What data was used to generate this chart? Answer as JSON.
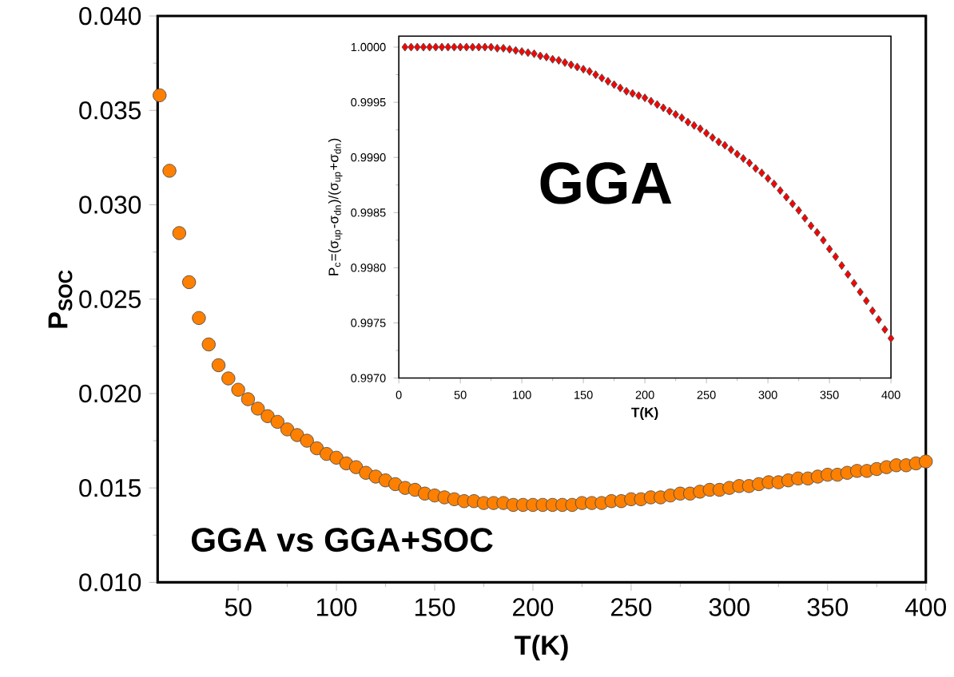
{
  "chart_data": [
    {
      "type": "scatter",
      "xlabel": "T(K)",
      "ylabel": "P$_{SOC}$",
      "color": "#ff8000",
      "marker": "circle",
      "x": [
        10,
        15,
        20,
        25,
        30,
        35,
        40,
        45,
        50,
        55,
        60,
        65,
        70,
        75,
        80,
        85,
        90,
        95,
        100,
        105,
        110,
        115,
        120,
        125,
        130,
        135,
        140,
        145,
        150,
        155,
        160,
        165,
        170,
        175,
        180,
        185,
        190,
        195,
        200,
        205,
        210,
        215,
        220,
        225,
        230,
        235,
        240,
        245,
        250,
        255,
        260,
        265,
        270,
        275,
        280,
        285,
        290,
        295,
        300,
        305,
        310,
        315,
        320,
        325,
        330,
        335,
        340,
        345,
        350,
        355,
        360,
        365,
        370,
        375,
        380,
        385,
        390,
        395,
        400
      ],
      "values": [
        0.0358,
        0.0318,
        0.0285,
        0.0259,
        0.024,
        0.0226,
        0.0215,
        0.0208,
        0.0202,
        0.0197,
        0.0192,
        0.0188,
        0.0185,
        0.0181,
        0.0178,
        0.0175,
        0.0171,
        0.0168,
        0.0166,
        0.0163,
        0.0161,
        0.0158,
        0.0156,
        0.0154,
        0.0152,
        0.015,
        0.0149,
        0.0147,
        0.0146,
        0.0145,
        0.0144,
        0.0143,
        0.0143,
        0.0142,
        0.0142,
        0.0142,
        0.0141,
        0.0141,
        0.0141,
        0.0141,
        0.0141,
        0.0141,
        0.0141,
        0.0142,
        0.0142,
        0.0142,
        0.0143,
        0.0143,
        0.0144,
        0.0144,
        0.0145,
        0.0145,
        0.0146,
        0.0147,
        0.0147,
        0.0148,
        0.0149,
        0.0149,
        0.015,
        0.0151,
        0.0151,
        0.0152,
        0.0153,
        0.0153,
        0.0154,
        0.0155,
        0.0155,
        0.0156,
        0.0157,
        0.0157,
        0.0158,
        0.0159,
        0.0159,
        0.016,
        0.0161,
        0.0162,
        0.0162,
        0.0163,
        0.0164
      ],
      "xlim": [
        9,
        400
      ],
      "ylim": [
        0.01,
        0.04
      ],
      "xticks": [
        50,
        100,
        150,
        200,
        250,
        300,
        350,
        400
      ],
      "yticks": [
        {
          "value": 0.01,
          "label": "0.010"
        },
        {
          "value": 0.015,
          "label": "0.015"
        },
        {
          "value": 0.02,
          "label": "0.020"
        },
        {
          "value": 0.025,
          "label": "0.025"
        },
        {
          "value": 0.03,
          "label": "0.030"
        },
        {
          "value": 0.035,
          "label": "0.035"
        },
        {
          "value": 0.04,
          "label": "0.040"
        }
      ],
      "annotations": [
        "GGA vs GGA+SOC"
      ]
    },
    {
      "type": "scatter",
      "xlabel": "T(K)",
      "ylabel": "P$_{c}$=(σ$_{up}$-σ$_{dn}$)/(σ$_{up}$+σ$_{dn}$)",
      "color": "#ff0000",
      "marker": "diamond",
      "x": [
        5,
        10,
        15,
        20,
        25,
        30,
        35,
        40,
        45,
        50,
        55,
        60,
        65,
        70,
        75,
        80,
        85,
        90,
        95,
        100,
        105,
        110,
        115,
        120,
        125,
        130,
        135,
        140,
        145,
        150,
        155,
        160,
        165,
        170,
        175,
        180,
        185,
        190,
        195,
        200,
        205,
        210,
        215,
        220,
        225,
        230,
        235,
        240,
        245,
        250,
        255,
        260,
        265,
        270,
        275,
        280,
        285,
        290,
        295,
        300,
        305,
        310,
        315,
        320,
        325,
        330,
        335,
        340,
        345,
        350,
        355,
        360,
        365,
        370,
        375,
        380,
        385,
        390,
        395,
        400
      ],
      "values": [
        1.0,
        1.0,
        1.0,
        1.0,
        1.0,
        1.0,
        1.0,
        1.0,
        1.0,
        1.0,
        1.0,
        1.0,
        1.0,
        1.0,
        1.0,
        0.99999,
        0.99999,
        0.99998,
        0.99997,
        0.99996,
        0.99995,
        0.99994,
        0.99992,
        0.99991,
        0.99989,
        0.99988,
        0.99986,
        0.99984,
        0.99982,
        0.9998,
        0.99978,
        0.99975,
        0.99972,
        0.99969,
        0.99966,
        0.99963,
        0.9996,
        0.99958,
        0.99956,
        0.99954,
        0.99951,
        0.99948,
        0.99945,
        0.99942,
        0.99939,
        0.99936,
        0.99932,
        0.99929,
        0.99926,
        0.99922,
        0.99918,
        0.99914,
        0.99911,
        0.99907,
        0.99903,
        0.99899,
        0.99895,
        0.9989,
        0.99886,
        0.99881,
        0.99876,
        0.9987,
        0.99864,
        0.99858,
        0.99852,
        0.99845,
        0.99838,
        0.99832,
        0.99825,
        0.99817,
        0.9981,
        0.99802,
        0.99794,
        0.99786,
        0.99778,
        0.9977,
        0.99761,
        0.99753,
        0.99744,
        0.99736
      ],
      "xlim": [
        0,
        400
      ],
      "ylim": [
        0.997,
        1.0001
      ],
      "xticks": [
        0,
        50,
        100,
        150,
        200,
        250,
        300,
        350,
        400
      ],
      "yticks": [
        {
          "value": 0.997,
          "label": "0.9970"
        },
        {
          "value": 0.9975,
          "label": "0.9975"
        },
        {
          "value": 0.998,
          "label": "0.9980"
        },
        {
          "value": 0.9985,
          "label": "0.9985"
        },
        {
          "value": 0.999,
          "label": "0.9990"
        },
        {
          "value": 0.9995,
          "label": "0.9995"
        },
        {
          "value": 1.0,
          "label": "1.0000"
        }
      ],
      "annotations": [
        "GGA"
      ]
    }
  ]
}
